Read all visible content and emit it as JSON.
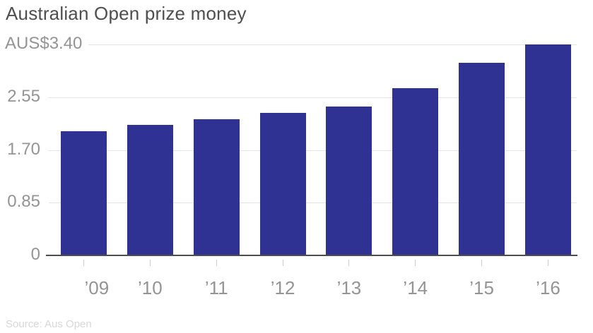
{
  "title": "Australian Open prize money",
  "source": "Source: Aus Open",
  "colors": {
    "bar": "#2f3292",
    "title_text": "#4f4f4f",
    "tick_label": "#949494",
    "gridline": "#e4e4e4",
    "axis_line": "#4d4d4d",
    "tick_mark": "#cccccc",
    "source_text": "#d8d8d8",
    "background": "#ffffff"
  },
  "chart_data": {
    "type": "bar",
    "title": "Australian Open prize money",
    "categories": [
      "’09",
      "’10",
      "’11",
      "’12",
      "’13",
      "’14",
      "’15",
      "’16"
    ],
    "values": [
      2.0,
      2.1,
      2.2,
      2.3,
      2.4,
      2.7,
      3.1,
      3.4
    ],
    "xlabel": "",
    "ylabel": "",
    "ylim": [
      0,
      3.4
    ],
    "y_ticks": [
      {
        "value": 0,
        "label": "0"
      },
      {
        "value": 0.85,
        "label": "0.85"
      },
      {
        "value": 1.7,
        "label": "1.70"
      },
      {
        "value": 2.55,
        "label": "2.55"
      },
      {
        "value": 3.4,
        "label": "AUS$3.40"
      }
    ],
    "grid": true,
    "legend": false
  }
}
